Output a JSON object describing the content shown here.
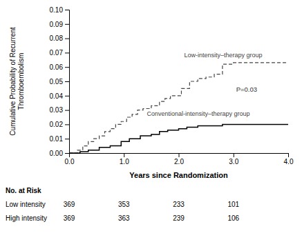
{
  "chart_data": {
    "type": "line",
    "xlabel": "Years since Randomization",
    "ylabel": "Cumulative Probability of Recurrent\nThromboembolism",
    "xlim": [
      0.0,
      4.0
    ],
    "ylim": [
      0.0,
      0.1
    ],
    "xticks": [
      {
        "value": 0.0,
        "label": "0.0"
      },
      {
        "value": 1.0,
        "label": "1.0"
      },
      {
        "value": 2.0,
        "label": "2.0"
      },
      {
        "value": 3.0,
        "label": "3.0"
      },
      {
        "value": 4.0,
        "label": "4.0"
      }
    ],
    "yticks": [
      {
        "value": 0.0,
        "label": "0.00"
      },
      {
        "value": 0.01,
        "label": "0.01"
      },
      {
        "value": 0.02,
        "label": "0.02"
      },
      {
        "value": 0.03,
        "label": "0.03"
      },
      {
        "value": 0.04,
        "label": "0.04"
      },
      {
        "value": 0.05,
        "label": "0.05"
      },
      {
        "value": 0.06,
        "label": "0.06"
      },
      {
        "value": 0.07,
        "label": "0.07"
      },
      {
        "value": 0.08,
        "label": "0.08"
      },
      {
        "value": 0.09,
        "label": "0.09"
      },
      {
        "value": 0.1,
        "label": "0.10"
      }
    ],
    "grid": false,
    "series": [
      {
        "name": "Low-intensity–therapy group",
        "color": "#444444",
        "line_style": "dashed",
        "x": [
          0.0,
          0.15,
          0.25,
          0.35,
          0.45,
          0.55,
          0.65,
          0.75,
          0.85,
          0.95,
          1.05,
          1.15,
          1.25,
          1.35,
          1.5,
          1.65,
          1.75,
          1.85,
          2.05,
          2.2,
          2.35,
          2.5,
          2.65,
          2.8,
          3.0,
          3.5,
          4.0
        ],
        "values": [
          0.0,
          0.002,
          0.005,
          0.008,
          0.01,
          0.012,
          0.015,
          0.017,
          0.02,
          0.022,
          0.025,
          0.027,
          0.03,
          0.031,
          0.033,
          0.036,
          0.038,
          0.04,
          0.045,
          0.05,
          0.052,
          0.053,
          0.055,
          0.062,
          0.063,
          0.063,
          0.063
        ]
      },
      {
        "name": "Conventional-intensity–therapy group",
        "color": "#000000",
        "line_style": "solid",
        "x": [
          0.0,
          0.2,
          0.35,
          0.55,
          0.75,
          0.95,
          1.1,
          1.3,
          1.5,
          1.65,
          1.8,
          2.0,
          2.15,
          2.35,
          2.55,
          2.8,
          3.1,
          4.0
        ],
        "values": [
          0.0,
          0.001,
          0.002,
          0.004,
          0.005,
          0.008,
          0.01,
          0.012,
          0.013,
          0.015,
          0.016,
          0.017,
          0.018,
          0.019,
          0.019,
          0.02,
          0.02,
          0.02
        ]
      }
    ],
    "annotations": [
      "P=0.03"
    ],
    "risk_table": {
      "title": "No. at Risk",
      "x": [
        0.0,
        1.0,
        2.0,
        3.0
      ],
      "rows": [
        {
          "label": "Low intensity",
          "values": [
            369,
            353,
            233,
            101
          ]
        },
        {
          "label": "High intensity",
          "values": [
            369,
            363,
            239,
            106
          ]
        }
      ]
    }
  }
}
